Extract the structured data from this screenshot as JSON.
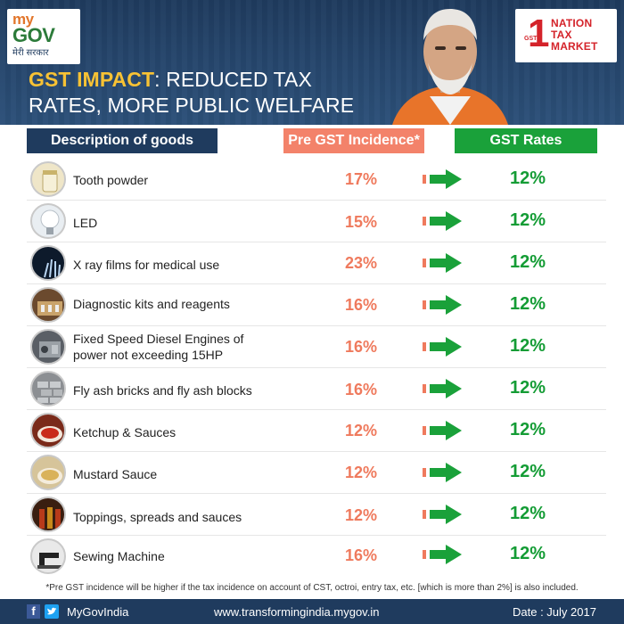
{
  "header": {
    "logo_left": {
      "line1": "my",
      "line2": "GOV",
      "sub": "मेरी सरकार"
    },
    "logo_right": {
      "numeral": "1",
      "gst": "GST",
      "lines": [
        "NATION",
        "TAX",
        "MARKET"
      ]
    },
    "title_accent": "GST IMPACT",
    "title_rest": ": REDUCED TAX",
    "title_line2": "RATES, MORE PUBLIC WELFARE"
  },
  "columns": {
    "desc": "Description of goods",
    "pre": "Pre GST Incidence*",
    "gst": "GST Rates"
  },
  "colors": {
    "navy": "#1f3b5e",
    "pre": "#ef7a5d",
    "gst": "#149c35",
    "accent": "#f7c234"
  },
  "rows": [
    {
      "icon": "tooth-powder-icon",
      "desc": "Tooth powder",
      "pre": "17%",
      "gst": "12%"
    },
    {
      "icon": "led-bulb-icon",
      "desc": "LED",
      "pre": "15%",
      "gst": "12%"
    },
    {
      "icon": "xray-film-icon",
      "desc": "X ray films for medical use",
      "pre": "23%",
      "gst": "12%"
    },
    {
      "icon": "diagnostic-kit-icon",
      "desc": "Diagnostic kits and reagents",
      "pre": "16%",
      "gst": "12%"
    },
    {
      "icon": "diesel-engine-icon",
      "desc": "Fixed Speed Diesel Engines of power not exceeding 15HP",
      "pre": "16%",
      "gst": "12%"
    },
    {
      "icon": "bricks-icon",
      "desc": "Fly ash bricks and fly ash blocks",
      "pre": "16%",
      "gst": "12%"
    },
    {
      "icon": "ketchup-icon",
      "desc": "Ketchup & Sauces",
      "pre": "12%",
      "gst": "12%"
    },
    {
      "icon": "mustard-sauce-icon",
      "desc": "Mustard Sauce",
      "pre": "12%",
      "gst": "12%"
    },
    {
      "icon": "sauce-bottles-icon",
      "desc": "Toppings, spreads and sauces",
      "pre": "12%",
      "gst": "12%"
    },
    {
      "icon": "sewing-machine-icon",
      "desc": "Sewing Machine",
      "pre": "16%",
      "gst": "12%"
    }
  ],
  "footnote": "*Pre GST incidence will be higher if the tax incidence on account of CST, octroi, entry tax, etc. [which is more than 2%] is also included.",
  "footer": {
    "fb": "f",
    "handle": "MyGovIndia",
    "site": "www.transformingindia.mygov.in",
    "date": "Date : July 2017"
  }
}
